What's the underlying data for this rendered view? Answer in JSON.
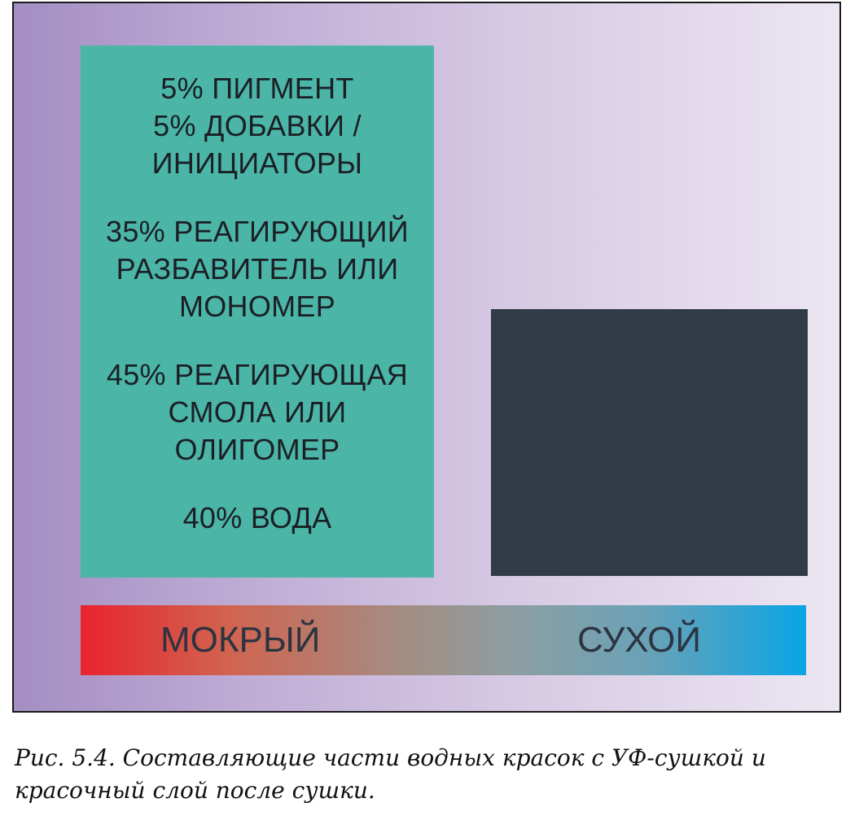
{
  "diagram": {
    "wet_composition": {
      "groups": [
        [
          "5% ПИГМЕНТ",
          "5% ДОБАВКИ /",
          "ИНИЦИАТОРЫ"
        ],
        [
          "35% РЕАГИРУЮЩИЙ",
          "РАЗБАВИТЕЛЬ ИЛИ",
          "МОНОМЕР"
        ],
        [
          "45% РЕАГИРУЮЩАЯ",
          "СМОЛА ИЛИ",
          "ОЛИГОМЕР"
        ],
        [
          "40% ВОДА"
        ]
      ]
    },
    "state_bar": {
      "wet_label": "МОКРЫЙ",
      "dry_label": "СУХОЙ"
    },
    "colors": {
      "wet_panel": "#4bb5a8",
      "dry_layer": "#323b48",
      "bar_start": "#e8232d",
      "bar_end": "#0aa4e6"
    }
  },
  "caption": {
    "line1": "Рис. 5.4. Составляющие части водных красок с УФ-сушкой и",
    "line2": "красочный слой после сушки."
  }
}
